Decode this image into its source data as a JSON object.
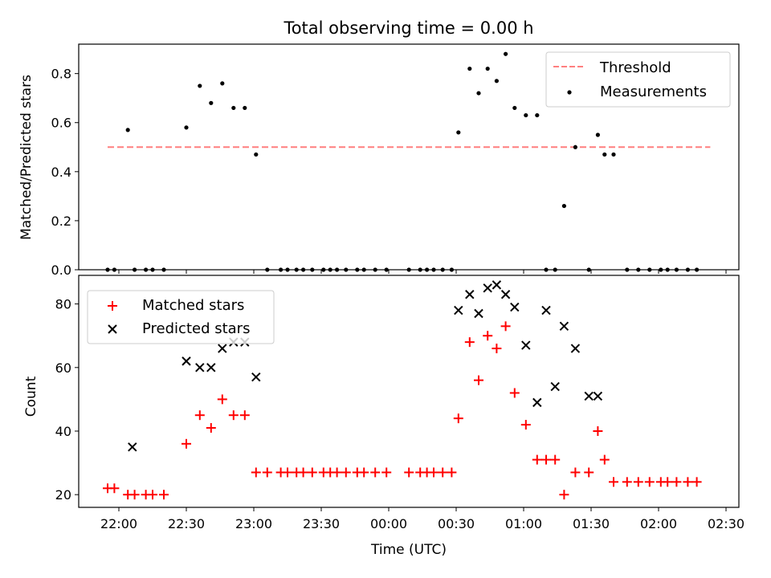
{
  "chart_data": [
    {
      "type": "scatter",
      "title": "Total observing time = 0.00 h",
      "ylabel": "Matched/Predicted stars",
      "xlabel": "",
      "ylim": [
        0,
        0.92
      ],
      "yticks": [
        "0.0",
        "0.2",
        "0.4",
        "0.6",
        "0.8"
      ],
      "legend_position": "top-right",
      "series": [
        {
          "name": "Threshold",
          "style": "dashed-line",
          "color": "#ff7f7f",
          "x": [
            "21:55",
            "23:13",
            "00:22",
            "01:35",
            "02:23"
          ],
          "values": [
            0.5,
            0.5,
            0.5,
            0.5,
            0.5
          ]
        },
        {
          "name": "Measurements",
          "style": "dot",
          "color": "#000000",
          "x": [
            "21:55",
            "21:58",
            "22:04",
            "22:07",
            "22:12",
            "22:15",
            "22:20",
            "22:30",
            "22:36",
            "22:41",
            "22:46",
            "22:51",
            "22:56",
            "23:01",
            "23:06",
            "23:12",
            "23:15",
            "23:19",
            "23:22",
            "23:26",
            "23:31",
            "23:34",
            "23:37",
            "23:41",
            "23:46",
            "23:49",
            "23:54",
            "23:59",
            "00:09",
            "00:14",
            "00:17",
            "00:20",
            "00:24",
            "00:28",
            "00:31",
            "00:36",
            "00:40",
            "00:44",
            "00:48",
            "00:52",
            "00:56",
            "01:01",
            "01:06",
            "01:10",
            "01:14",
            "01:18",
            "01:23",
            "01:29",
            "01:33",
            "01:36",
            "01:40",
            "01:46",
            "01:51",
            "01:56",
            "02:01",
            "02:04",
            "02:08",
            "02:13",
            "02:17"
          ],
          "values": [
            0.0,
            0.0,
            0.57,
            0.0,
            0.0,
            0.0,
            0.0,
            0.58,
            0.75,
            0.68,
            0.76,
            0.66,
            0.66,
            0.47,
            0.0,
            0.0,
            0.0,
            0.0,
            0.0,
            0.0,
            0.0,
            0.0,
            0.0,
            0.0,
            0.0,
            0.0,
            0.0,
            0.0,
            0.0,
            0.0,
            0.0,
            0.0,
            0.0,
            0.0,
            0.56,
            0.82,
            0.72,
            0.82,
            0.77,
            0.88,
            0.66,
            0.63,
            0.63,
            0.0,
            0.0,
            0.26,
            0.5,
            0.0,
            0.55,
            0.47,
            0.47,
            0.0,
            0.0,
            0.0,
            0.0,
            0.0,
            0.0,
            0.0,
            0.0
          ]
        }
      ]
    },
    {
      "type": "scatter",
      "title": "",
      "ylabel": "Count",
      "xlabel": "Time (UTC)",
      "xticks": [
        "22:00",
        "22:30",
        "23:00",
        "23:30",
        "00:00",
        "00:30",
        "01:00",
        "01:30",
        "02:00",
        "02:30"
      ],
      "yticks": [
        "20",
        "40",
        "60",
        "80"
      ],
      "ylim": [
        16,
        89
      ],
      "legend_position": "top-left",
      "series": [
        {
          "name": "Matched stars",
          "style": "plus",
          "color": "#ff0000",
          "x": [
            "21:55",
            "21:58",
            "22:04",
            "22:07",
            "22:12",
            "22:15",
            "22:20",
            "22:30",
            "22:36",
            "22:41",
            "22:46",
            "22:51",
            "22:56",
            "23:01",
            "23:06",
            "23:12",
            "23:15",
            "23:19",
            "23:22",
            "23:26",
            "23:31",
            "23:34",
            "23:37",
            "23:41",
            "23:46",
            "23:49",
            "23:54",
            "23:59",
            "00:09",
            "00:14",
            "00:17",
            "00:20",
            "00:24",
            "00:28",
            "00:31",
            "00:36",
            "00:40",
            "00:44",
            "00:48",
            "00:52",
            "00:56",
            "01:01",
            "01:06",
            "01:10",
            "01:14",
            "01:18",
            "01:23",
            "01:29",
            "01:33",
            "01:36",
            "01:40",
            "01:46",
            "01:51",
            "01:56",
            "02:01",
            "02:04",
            "02:08",
            "02:13",
            "02:17"
          ],
          "values": [
            22,
            22,
            20,
            20,
            20,
            20,
            20,
            36,
            45,
            41,
            50,
            45,
            45,
            27,
            27,
            27,
            27,
            27,
            27,
            27,
            27,
            27,
            27,
            27,
            27,
            27,
            27,
            27,
            27,
            27,
            27,
            27,
            27,
            27,
            44,
            68,
            56,
            70,
            66,
            73,
            52,
            42,
            31,
            31,
            31,
            20,
            27,
            27,
            40,
            31,
            24,
            24,
            24,
            24,
            24,
            24,
            24,
            24,
            24
          ]
        },
        {
          "name": "Predicted stars",
          "style": "x",
          "color": "#000000",
          "x": [
            "22:06",
            "22:30",
            "22:36",
            "22:41",
            "22:46",
            "22:51",
            "22:56",
            "23:01",
            "00:31",
            "00:36",
            "00:40",
            "00:44",
            "00:48",
            "00:52",
            "00:56",
            "01:01",
            "01:06",
            "01:10",
            "01:14",
            "01:18",
            "01:23",
            "01:29",
            "01:33"
          ],
          "values": [
            35,
            62,
            60,
            60,
            66,
            68,
            68,
            57,
            78,
            83,
            77,
            85,
            86,
            83,
            79,
            67,
            49,
            78,
            54,
            73,
            66,
            51,
            51
          ]
        }
      ]
    }
  ]
}
